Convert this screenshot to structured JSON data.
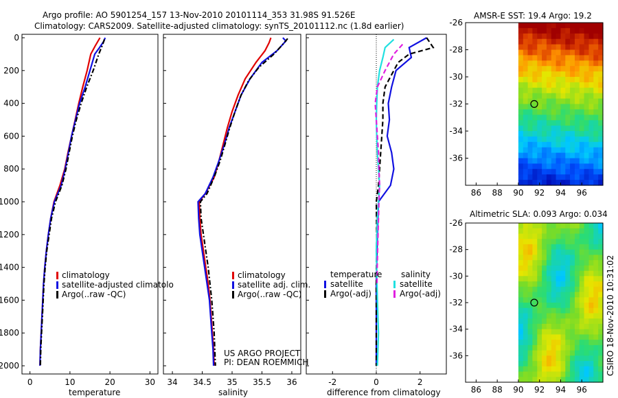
{
  "header": {
    "line1": "Argo profile: AO 5901254_157 13-Nov-2010 20101114_353 31.98S 91.526E",
    "line2": "Climatology: CARS2009. Satellite-adjusted climatology: synTS_20101112.nc (1.8d earlier)"
  },
  "credits": {
    "project": "US ARGO PROJECT",
    "pi": "PI: DEAN ROEMMICH",
    "stamp": "CSIRO 18-Nov-2010 10:31:02"
  },
  "colors": {
    "climatology": "#e00000",
    "satellite": "#1010e0",
    "argo": "#000000",
    "sat_sal": "#20e0e0",
    "argo_sal": "#e020e0"
  },
  "chart_data": [
    {
      "type": "line",
      "id": "temperature",
      "xlabel": "temperature",
      "xlim": [
        -2,
        32
      ],
      "ylim": [
        0,
        2050
      ],
      "xticks": [
        0,
        10,
        20,
        30
      ],
      "yticks": [
        0,
        200,
        400,
        600,
        800,
        1000,
        1200,
        1400,
        1600,
        1800,
        2000
      ],
      "legend": [
        "climatology",
        "satellite-adjusted climatolo",
        "Argo(..raw -QC)"
      ],
      "series": [
        {
          "name": "climatology",
          "color": "#e00000",
          "dash": "none",
          "points": [
            [
              17.5,
              0
            ],
            [
              16.3,
              50
            ],
            [
              15.2,
              100
            ],
            [
              14.3,
              200
            ],
            [
              13.2,
              300
            ],
            [
              12.2,
              400
            ],
            [
              11.3,
              500
            ],
            [
              10.4,
              600
            ],
            [
              9.5,
              700
            ],
            [
              8.7,
              800
            ],
            [
              7.5,
              900
            ],
            [
              6.0,
              1000
            ],
            [
              5.2,
              1100
            ],
            [
              4.6,
              1200
            ],
            [
              4.1,
              1300
            ],
            [
              3.7,
              1400
            ],
            [
              3.4,
              1500
            ],
            [
              3.2,
              1600
            ],
            [
              3.0,
              1700
            ],
            [
              2.8,
              1800
            ],
            [
              2.6,
              1900
            ],
            [
              2.5,
              2000
            ]
          ]
        },
        {
          "name": "satellite",
          "color": "#1010e0",
          "dash": "none",
          "points": [
            [
              18.8,
              0
            ],
            [
              18.5,
              20
            ],
            [
              17.4,
              60
            ],
            [
              16.2,
              100
            ],
            [
              15.0,
              200
            ],
            [
              13.8,
              300
            ],
            [
              12.4,
              400
            ],
            [
              11.4,
              500
            ],
            [
              10.4,
              600
            ],
            [
              9.6,
              700
            ],
            [
              8.8,
              800
            ],
            [
              7.8,
              900
            ],
            [
              6.1,
              1000
            ],
            [
              5.2,
              1100
            ],
            [
              4.6,
              1200
            ],
            [
              4.1,
              1300
            ],
            [
              3.7,
              1400
            ],
            [
              3.4,
              1500
            ],
            [
              3.2,
              1600
            ],
            [
              3.0,
              1700
            ],
            [
              2.8,
              1800
            ],
            [
              2.6,
              1900
            ],
            [
              2.5,
              2000
            ]
          ]
        },
        {
          "name": "argo",
          "color": "#000000",
          "dash": "7,3,2,3",
          "points": [
            [
              18.6,
              10
            ],
            [
              18.2,
              40
            ],
            [
              17.2,
              100
            ],
            [
              15.8,
              200
            ],
            [
              14.2,
              300
            ],
            [
              12.8,
              400
            ],
            [
              11.6,
              500
            ],
            [
              10.6,
              600
            ],
            [
              9.8,
              700
            ],
            [
              9.0,
              800
            ],
            [
              8.0,
              900
            ],
            [
              6.4,
              1000
            ],
            [
              5.4,
              1100
            ],
            [
              4.8,
              1200
            ],
            [
              4.2,
              1300
            ],
            [
              3.8,
              1400
            ],
            [
              3.5,
              1500
            ],
            [
              3.3,
              1600
            ],
            [
              3.1,
              1700
            ],
            [
              2.9,
              1800
            ],
            [
              2.7,
              1900
            ],
            [
              2.6,
              2000
            ]
          ]
        }
      ]
    },
    {
      "type": "line",
      "id": "salinity",
      "xlabel": "salinity",
      "xlim": [
        33.85,
        36.15
      ],
      "ylim": [
        0,
        2050
      ],
      "xticks": [
        34,
        34.5,
        35,
        35.5,
        36
      ],
      "legend": [
        "climatology",
        "satellite adj. clim.",
        "Argo(..raw -QC)"
      ],
      "series": [
        {
          "name": "climatology",
          "color": "#e00000",
          "dash": "none",
          "points": [
            [
              35.65,
              0
            ],
            [
              35.62,
              30
            ],
            [
              35.55,
              80
            ],
            [
              35.4,
              150
            ],
            [
              35.22,
              250
            ],
            [
              35.1,
              350
            ],
            [
              35.0,
              450
            ],
            [
              34.92,
              550
            ],
            [
              34.85,
              650
            ],
            [
              34.78,
              750
            ],
            [
              34.7,
              850
            ],
            [
              34.55,
              950
            ],
            [
              34.45,
              1000
            ],
            [
              34.46,
              1100
            ],
            [
              34.48,
              1200
            ],
            [
              34.52,
              1300
            ],
            [
              34.56,
              1400
            ],
            [
              34.6,
              1500
            ],
            [
              34.63,
              1600
            ],
            [
              34.65,
              1700
            ],
            [
              34.67,
              1800
            ],
            [
              34.69,
              1900
            ],
            [
              34.7,
              2000
            ]
          ]
        },
        {
          "name": "satellite",
          "color": "#1010e0",
          "dash": "none",
          "points": [
            [
              35.85,
              0
            ],
            [
              35.9,
              20
            ],
            [
              35.75,
              80
            ],
            [
              35.5,
              150
            ],
            [
              35.3,
              250
            ],
            [
              35.15,
              350
            ],
            [
              35.05,
              450
            ],
            [
              34.95,
              550
            ],
            [
              34.87,
              650
            ],
            [
              34.78,
              750
            ],
            [
              34.68,
              850
            ],
            [
              34.55,
              950
            ],
            [
              34.43,
              1000
            ],
            [
              34.44,
              1100
            ],
            [
              34.46,
              1200
            ],
            [
              34.5,
              1300
            ],
            [
              34.54,
              1400
            ],
            [
              34.58,
              1500
            ],
            [
              34.62,
              1600
            ],
            [
              34.64,
              1700
            ],
            [
              34.66,
              1800
            ],
            [
              34.68,
              1900
            ],
            [
              34.69,
              2000
            ]
          ]
        },
        {
          "name": "argo",
          "color": "#000000",
          "dash": "7,3,2,3",
          "points": [
            [
              35.93,
              5
            ],
            [
              35.85,
              40
            ],
            [
              35.7,
              100
            ],
            [
              35.45,
              180
            ],
            [
              35.28,
              260
            ],
            [
              35.15,
              350
            ],
            [
              35.05,
              450
            ],
            [
              34.96,
              550
            ],
            [
              34.88,
              650
            ],
            [
              34.8,
              750
            ],
            [
              34.7,
              850
            ],
            [
              34.58,
              950
            ],
            [
              34.47,
              1000
            ],
            [
              34.48,
              1100
            ],
            [
              34.52,
              1200
            ],
            [
              34.56,
              1300
            ],
            [
              34.6,
              1400
            ],
            [
              34.63,
              1500
            ],
            [
              34.66,
              1600
            ],
            [
              34.68,
              1700
            ],
            [
              34.7,
              1800
            ],
            [
              34.71,
              1900
            ],
            [
              34.72,
              2000
            ]
          ]
        }
      ]
    },
    {
      "type": "line",
      "id": "difference",
      "xlabel": "difference from climatology",
      "xlim": [
        -3.2,
        3.2
      ],
      "ylim": [
        0,
        2050
      ],
      "xticks": [
        -2,
        0,
        2
      ],
      "legend_titles": [
        "temperature",
        "salinity"
      ],
      "legend": [
        "satellite",
        "Argo(-adj)",
        "satellite",
        "Argo(-adj)"
      ],
      "series": [
        {
          "name": "temp satellite",
          "color": "#1010e0",
          "dash": "none",
          "points": [
            [
              2.3,
              0
            ],
            [
              1.5,
              60
            ],
            [
              1.6,
              120
            ],
            [
              0.9,
              200
            ],
            [
              0.7,
              300
            ],
            [
              0.55,
              400
            ],
            [
              0.6,
              500
            ],
            [
              0.5,
              600
            ],
            [
              0.7,
              700
            ],
            [
              0.8,
              800
            ],
            [
              0.65,
              900
            ],
            [
              0.1,
              1000
            ],
            [
              0.05,
              1200
            ],
            [
              0.0,
              1500
            ],
            [
              0.0,
              2000
            ]
          ]
        },
        {
          "name": "temp argo",
          "color": "#000000",
          "dash": "7,4",
          "points": [
            [
              2.3,
              0
            ],
            [
              2.6,
              60
            ],
            [
              1.5,
              100
            ],
            [
              1.0,
              150
            ],
            [
              0.6,
              250
            ],
            [
              0.4,
              300
            ],
            [
              0.3,
              400
            ],
            [
              0.3,
              500
            ],
            [
              0.25,
              600
            ],
            [
              0.2,
              700
            ],
            [
              0.15,
              800
            ],
            [
              0.1,
              900
            ],
            [
              0.0,
              1000
            ],
            [
              0.02,
              1200
            ],
            [
              0.0,
              1500
            ],
            [
              0.0,
              2000
            ]
          ]
        },
        {
          "name": "sal satellite",
          "color": "#20e0e0",
          "dash": "none",
          "points": [
            [
              0.8,
              10
            ],
            [
              0.4,
              60
            ],
            [
              0.3,
              120
            ],
            [
              0.15,
              200
            ],
            [
              0.05,
              300
            ],
            [
              0.02,
              400
            ],
            [
              0.0,
              500
            ],
            [
              0.02,
              600
            ],
            [
              0.05,
              700
            ],
            [
              0.1,
              800
            ],
            [
              0.15,
              900
            ],
            [
              0.05,
              1100
            ],
            [
              0.0,
              1300
            ],
            [
              0.05,
              1600
            ],
            [
              0.1,
              1800
            ],
            [
              0.05,
              2000
            ]
          ]
        },
        {
          "name": "sal argo",
          "color": "#e020e0",
          "dash": "7,4",
          "points": [
            [
              1.2,
              40
            ],
            [
              0.8,
              100
            ],
            [
              0.4,
              200
            ],
            [
              0.05,
              300
            ],
            [
              -0.05,
              400
            ],
            [
              0.0,
              500
            ],
            [
              0.05,
              600
            ],
            [
              0.1,
              700
            ],
            [
              0.12,
              800
            ],
            [
              0.15,
              900
            ],
            [
              0.12,
              1000
            ],
            [
              0.1,
              1100
            ],
            [
              0.08,
              1200
            ],
            [
              0.06,
              1300
            ],
            [
              0.04,
              1400
            ],
            [
              0.03,
              1500
            ]
          ]
        }
      ]
    },
    {
      "type": "heatmap",
      "id": "sst",
      "title": "AMSR-E SST: 19.4 Argo: 19.2",
      "xticks": [
        86,
        88,
        90,
        92,
        94,
        96
      ],
      "yticks": [
        -26,
        -28,
        -30,
        -32,
        -34,
        -36
      ],
      "xlim": [
        85,
        98
      ],
      "ylim": [
        -38,
        -26
      ],
      "data_x_start": 90,
      "marker": [
        91.5,
        -32
      ]
    },
    {
      "type": "heatmap",
      "id": "sla",
      "title": "Altimetric SLA: 0.093 Argo: 0.034",
      "xticks": [
        86,
        88,
        90,
        92,
        94,
        96
      ],
      "yticks": [
        -26,
        -28,
        -30,
        -32,
        -34,
        -36
      ],
      "xlim": [
        85,
        98
      ],
      "ylim": [
        -38,
        -26
      ],
      "data_x_start": 90,
      "marker": [
        91.5,
        -32
      ]
    }
  ]
}
